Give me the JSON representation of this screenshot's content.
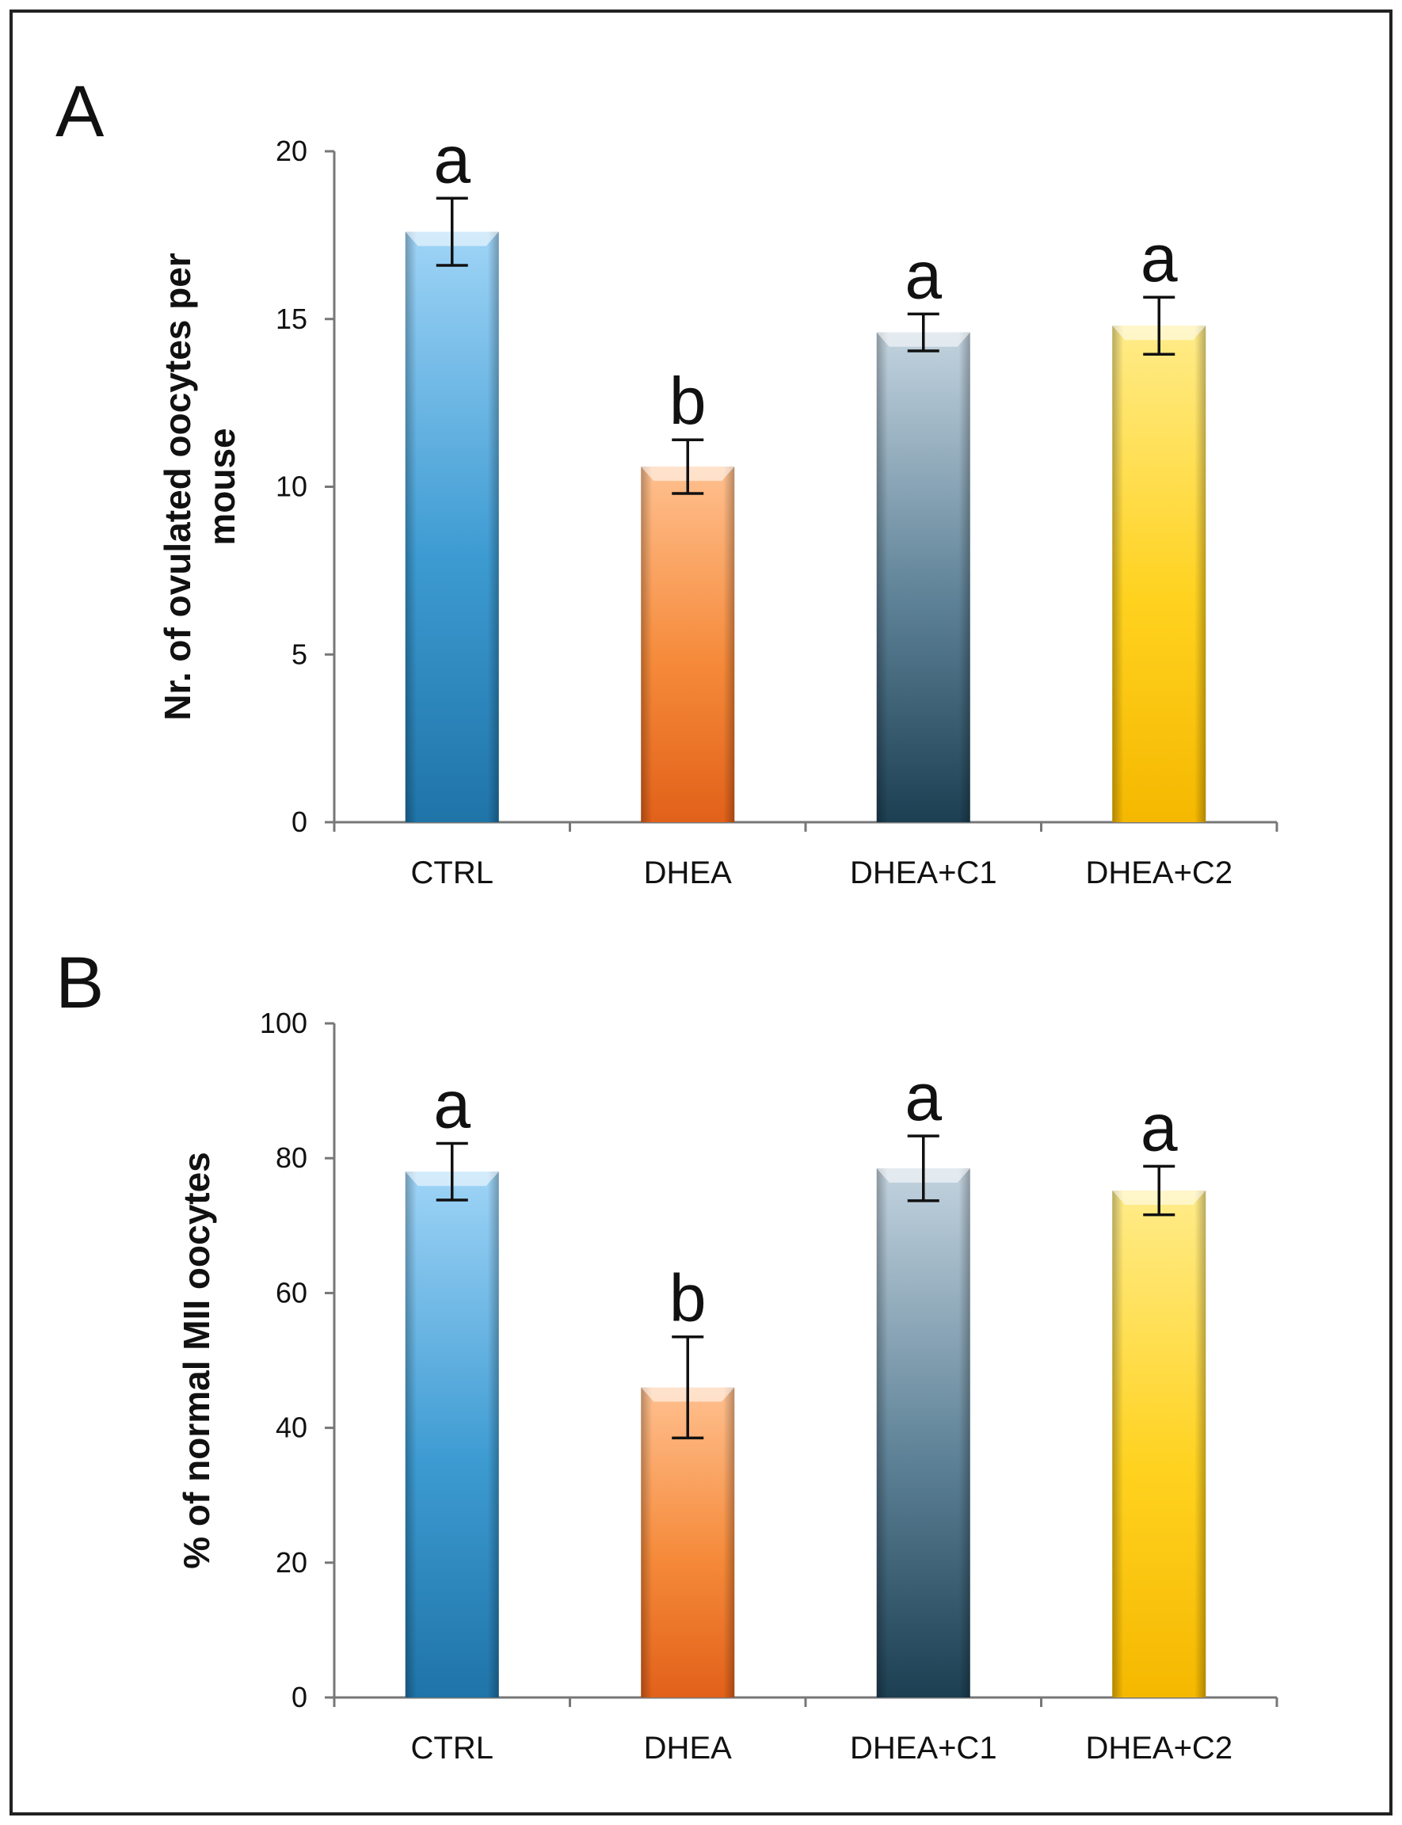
{
  "figure": {
    "panels": [
      "A",
      "B"
    ]
  },
  "colors": {
    "ctrl": [
      "#9fd4f7",
      "#3d9bd2",
      "#1f74a8"
    ],
    "dhea": [
      "#ffc08f",
      "#f58a3a",
      "#e2611a"
    ],
    "c1": [
      "#c3d3df",
      "#5d8196",
      "#1c3f52"
    ],
    "c2": [
      "#ffec8a",
      "#ffd21f",
      "#f5b800"
    ],
    "frame": "#222222"
  },
  "chart_data": [
    {
      "panel": "A",
      "type": "bar",
      "title": "",
      "xlabel": "",
      "ylabel": [
        "Nr. of ovulated oocytes per",
        "mouse"
      ],
      "categories": [
        "CTRL",
        "DHEA",
        "DHEA+C1",
        "DHEA+C2"
      ],
      "values": [
        17.6,
        10.6,
        14.6,
        14.8
      ],
      "errors": [
        1.0,
        0.8,
        0.55,
        0.85
      ],
      "significance": [
        "a",
        "b",
        "a",
        "a"
      ],
      "ylim": [
        0,
        20
      ],
      "yticks": [
        0,
        5,
        10,
        15,
        20
      ],
      "ytick_labels": [
        "0",
        "5",
        "10",
        "15",
        "20"
      ],
      "grid": false
    },
    {
      "panel": "B",
      "type": "bar",
      "title": "",
      "xlabel": "",
      "ylabel": [
        "% of normal MII oocytes"
      ],
      "categories": [
        "CTRL",
        "DHEA",
        "DHEA+C1",
        "DHEA+C2"
      ],
      "values": [
        78.0,
        46.0,
        78.5,
        75.2
      ],
      "errors": [
        4.2,
        7.5,
        4.8,
        3.6
      ],
      "significance": [
        "a",
        "b",
        "a",
        "a"
      ],
      "ylim": [
        0,
        100
      ],
      "yticks": [
        0,
        20,
        40,
        60,
        80,
        100
      ],
      "ytick_labels": [
        "0",
        "20",
        "40",
        "60",
        "80",
        "100"
      ],
      "grid": false
    }
  ]
}
